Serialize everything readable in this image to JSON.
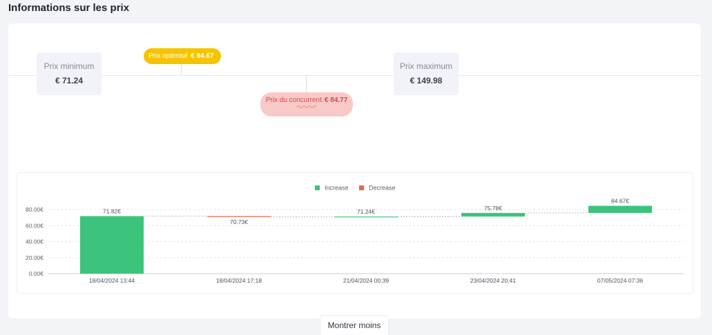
{
  "page": {
    "title": "Informations sur les prix"
  },
  "price_range": {
    "min_label": "Prix minimum",
    "min_value": "€ 71.24",
    "max_label": "Prix maximum",
    "max_value": "€ 149.98"
  },
  "optimized": {
    "label": "Prix optimisé",
    "value": "€ 84.67"
  },
  "competitor": {
    "label": "Prix du concurrent",
    "value": "€ 84.77"
  },
  "colors": {
    "increase": "#3cc47c",
    "decrease": "#e8694a",
    "optimized_pill": "#f5c400",
    "competitor_pill": "#f9c9c8"
  },
  "chart_data": {
    "type": "bar",
    "subtype": "waterfall",
    "legend": [
      {
        "name": "Increase",
        "color": "#3cc47c"
      },
      {
        "name": "Decrease",
        "color": "#e8694a"
      }
    ],
    "legend_position": "top-center",
    "categories": [
      "18/04/2024 13:44",
      "18/04/2024 17:18",
      "21/04/2024 00:39",
      "23/04/2024 20:41",
      "07/05/2024 07:36"
    ],
    "values": [
      71.82,
      70.73,
      71.24,
      75.78,
      84.67
    ],
    "data_labels": [
      "71.82€",
      "70.73€",
      "71.24€",
      "75.78€",
      "84.67€"
    ],
    "y_ticks": [
      "0.00€",
      "20.00€",
      "40.00€",
      "60.00€",
      "80.00€"
    ],
    "ylim": [
      0,
      80
    ],
    "grid": true
  },
  "actions": {
    "show_less": "Montrer moins"
  }
}
